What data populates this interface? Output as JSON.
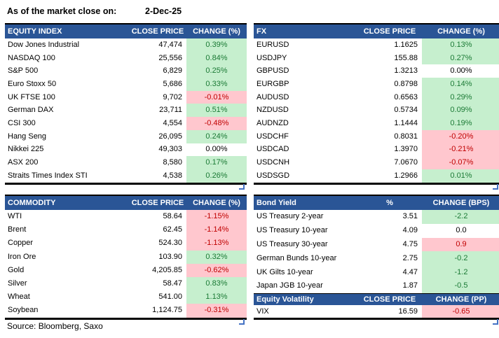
{
  "meta": {
    "as_of_label": "As of the market close on:",
    "as_of_date": "2-Dec-25",
    "source_note": "Source: Bloomberg, Saxo"
  },
  "colors": {
    "header_bg": "#2A5596",
    "header_text": "#FFFFFF",
    "positive_bg": "#C6EFCE",
    "positive_text": "#1B7A35",
    "negative_bg": "#FFC7CE",
    "negative_text": "#C00000",
    "border": "#000000",
    "corner_marker": "#4472C4"
  },
  "tables": {
    "equity_index": {
      "headers": [
        "EQUITY INDEX",
        "CLOSE PRICE",
        "CHANGE (%)"
      ],
      "rows": [
        {
          "name": "Dow Jones Industrial",
          "value": "47,474",
          "change": "0.39%",
          "fill": "green"
        },
        {
          "name": "NASDAQ 100",
          "value": "25,556",
          "change": "0.84%",
          "fill": "green"
        },
        {
          "name": "S&P 500",
          "value": "6,829",
          "change": "0.25%",
          "fill": "green"
        },
        {
          "name": "Euro Stoxx 50",
          "value": "5,686",
          "change": "0.33%",
          "fill": "green"
        },
        {
          "name": "UK FTSE 100",
          "value": "9,702",
          "change": "-0.01%",
          "fill": "red"
        },
        {
          "name": "German DAX",
          "value": "23,711",
          "change": "0.51%",
          "fill": "green"
        },
        {
          "name": "CSI 300",
          "value": "4,554",
          "change": "-0.48%",
          "fill": "red"
        },
        {
          "name": "Hang Seng",
          "value": "26,095",
          "change": "0.24%",
          "fill": "green"
        },
        {
          "name": "Nikkei 225",
          "value": "49,303",
          "change": "0.00%",
          "fill": "none"
        },
        {
          "name": "ASX 200",
          "value": "8,580",
          "change": "0.17%",
          "fill": "green"
        },
        {
          "name": "Straits Times Index STI",
          "value": "4,538",
          "change": "0.26%",
          "fill": "green"
        }
      ]
    },
    "fx": {
      "headers": [
        "FX",
        "CLOSE PRICE",
        "CHANGE (%)"
      ],
      "rows": [
        {
          "name": "EURUSD",
          "value": "1.1625",
          "change": "0.13%",
          "fill": "green"
        },
        {
          "name": "USDJPY",
          "value": "155.88",
          "change": "0.27%",
          "fill": "green"
        },
        {
          "name": "GBPUSD",
          "value": "1.3213",
          "change": "0.00%",
          "fill": "none"
        },
        {
          "name": "EURGBP",
          "value": "0.8798",
          "change": "0.14%",
          "fill": "green"
        },
        {
          "name": "AUDUSD",
          "value": "0.6563",
          "change": "0.29%",
          "fill": "green"
        },
        {
          "name": "NZDUSD",
          "value": "0.5734",
          "change": "0.09%",
          "fill": "green"
        },
        {
          "name": "AUDNZD",
          "value": "1.1444",
          "change": "0.19%",
          "fill": "green"
        },
        {
          "name": "USDCHF",
          "value": "0.8031",
          "change": "-0.20%",
          "fill": "red"
        },
        {
          "name": "USDCAD",
          "value": "1.3970",
          "change": "-0.21%",
          "fill": "red"
        },
        {
          "name": "USDCNH",
          "value": "7.0670",
          "change": "-0.07%",
          "fill": "red"
        },
        {
          "name": "USDSGD",
          "value": "1.2966",
          "change": "0.01%",
          "fill": "green"
        }
      ]
    },
    "commodity": {
      "headers": [
        "COMMODITY",
        "CLOSE PRICE",
        "CHANGE (%)"
      ],
      "rows": [
        {
          "name": "WTI",
          "value": "58.64",
          "change": "-1.15%",
          "fill": "red"
        },
        {
          "name": "Brent",
          "value": "62.45",
          "change": "-1.14%",
          "fill": "red"
        },
        {
          "name": "Copper",
          "value": "524.30",
          "change": "-1.13%",
          "fill": "red"
        },
        {
          "name": "Iron Ore",
          "value": "103.90",
          "change": "0.32%",
          "fill": "green"
        },
        {
          "name": "Gold",
          "value": "4,205.85",
          "change": "-0.62%",
          "fill": "red"
        },
        {
          "name": "Silver",
          "value": "58.47",
          "change": "0.83%",
          "fill": "green"
        },
        {
          "name": "Wheat",
          "value": "541.00",
          "change": "1.13%",
          "fill": "green"
        },
        {
          "name": "Soybean",
          "value": "1,124.75",
          "change": "-0.31%",
          "fill": "red"
        }
      ]
    },
    "bond_yield": {
      "headers": [
        "Bond Yield",
        "%",
        "CHANGE (BPS)"
      ],
      "rows": [
        {
          "name": "US Treasury 2-year",
          "value": "3.51",
          "change": "-2.2",
          "fill": "green"
        },
        {
          "name": "US Treasury 10-year",
          "value": "4.09",
          "change": "0.0",
          "fill": "none"
        },
        {
          "name": "US Treasury 30-year",
          "value": "4.75",
          "change": "0.9",
          "fill": "red"
        },
        {
          "name": "German Bunds 10-year",
          "value": "2.75",
          "change": "-0.2",
          "fill": "green"
        },
        {
          "name": "UK Gilts 10-year",
          "value": "4.47",
          "change": "-1.2",
          "fill": "green"
        },
        {
          "name": "Japan JGB 10-year",
          "value": "1.87",
          "change": "-0.5",
          "fill": "green"
        }
      ]
    },
    "equity_volatility": {
      "headers": [
        "Equity Volatility",
        "CLOSE PRICE",
        "CHANGE (PP)"
      ],
      "rows": [
        {
          "name": "VIX",
          "value": "16.59",
          "change": "-0.65",
          "fill": "red"
        }
      ]
    }
  }
}
